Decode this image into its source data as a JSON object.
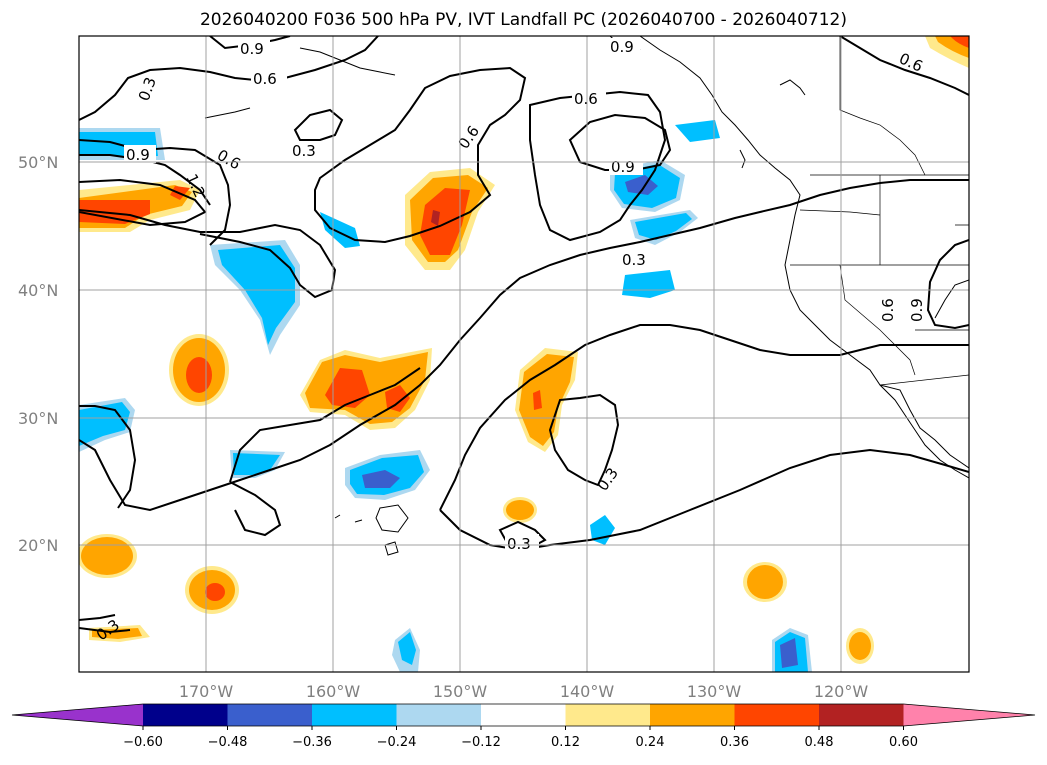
{
  "title": "2026040200 F036 500 hPa PV, IVT Landfall PC (2026040700 - 2026040712)",
  "axes": {
    "lat_labels": [
      "50°N",
      "40°N",
      "30°N",
      "20°N"
    ],
    "lon_labels": [
      "170°W",
      "160°W",
      "150°W",
      "140°W",
      "130°W",
      "120°W"
    ]
  },
  "contour_labels": [
    "0.9",
    "0.6",
    "0.3",
    "0.9",
    "0.6",
    "1.2",
    "0.3",
    "0.6",
    "0.6",
    "0.9",
    "0.9",
    "0.3",
    "0.6",
    "0.9",
    "0.6",
    "0.3",
    "0.3"
  ],
  "colorbar": {
    "ticks": [
      "−0.60",
      "−0.48",
      "−0.36",
      "−0.24",
      "−0.12",
      "0.12",
      "0.24",
      "0.36",
      "0.48",
      "0.60"
    ],
    "colors": [
      "#9932cc",
      "#00008b",
      "#3a5fcd",
      "#00bfff",
      "#add8f0",
      "#ffffff",
      "#ffe98c",
      "#ffa500",
      "#ff4500",
      "#b22222",
      "#ff82ab"
    ]
  },
  "colors": {
    "orange": "#ffa500",
    "yellow": "#ffe98c",
    "red": "#ff4500",
    "darkred": "#b22222",
    "cyan": "#00bfff",
    "lightblue": "#add8f0",
    "blue": "#3a5fcd"
  }
}
